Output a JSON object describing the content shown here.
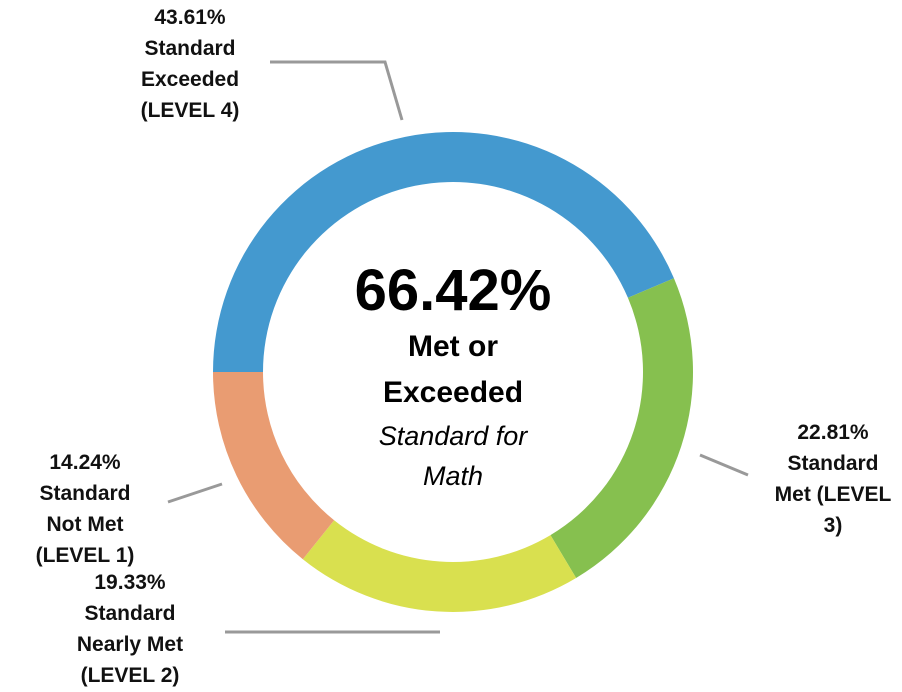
{
  "chart_data": {
    "type": "donut",
    "categories": [
      "Standard Exceeded (LEVEL 4)",
      "Standard Met (LEVEL 3)",
      "Standard Nearly Met (LEVEL 2)",
      "Standard Not Met (LEVEL 1)"
    ],
    "values": [
      43.61,
      22.81,
      19.33,
      14.24
    ],
    "value_labels": [
      "43.61%",
      "22.81%",
      "19.33%",
      "14.24%"
    ],
    "colors": [
      "#4499cf",
      "#86c04f",
      "#d9e04f",
      "#e99c72"
    ],
    "center_text": {
      "value": "66.42%",
      "label": "Met or Exceeded",
      "sublabel": "Standard for Math"
    }
  }
}
